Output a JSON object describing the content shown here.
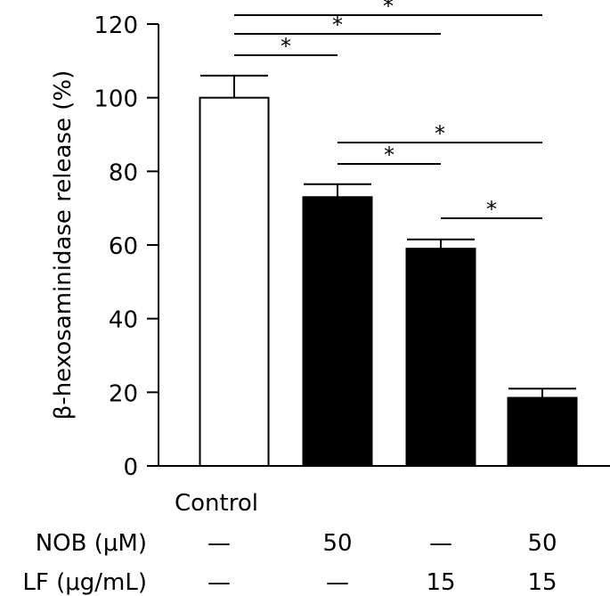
{
  "chart_data": {
    "type": "bar",
    "title": "",
    "xlabel": "",
    "ylabel": "β-hexosaminidase  release (%)",
    "ylim": [
      0,
      120
    ],
    "yticks": [
      "0",
      "20",
      "40",
      "60",
      "80",
      "100",
      "120"
    ],
    "categories": [
      "Control",
      "",
      "",
      ""
    ],
    "values": [
      100,
      73,
      59,
      18.5
    ],
    "errors": [
      6,
      3.5,
      2.5,
      2.5
    ],
    "bar_fill": [
      "#ffffff",
      "#000000",
      "#000000",
      "#000000"
    ],
    "treatments": [
      {
        "label": "NOB (μM)",
        "values": [
          "—",
          "50",
          "—",
          "50"
        ]
      },
      {
        "label": "LF (μg/mL)",
        "values": [
          "—",
          "—",
          "15",
          "15"
        ]
      }
    ],
    "significance": [
      {
        "from": 0,
        "to": 1,
        "symbol": "*"
      },
      {
        "from": 0,
        "to": 2,
        "symbol": "*"
      },
      {
        "from": 0,
        "to": 3,
        "symbol": "*"
      },
      {
        "from": 1,
        "to": 2,
        "symbol": "*"
      },
      {
        "from": 1,
        "to": 3,
        "symbol": "*"
      },
      {
        "from": 2,
        "to": 3,
        "symbol": "*"
      }
    ],
    "grid": false,
    "legend": "none"
  }
}
